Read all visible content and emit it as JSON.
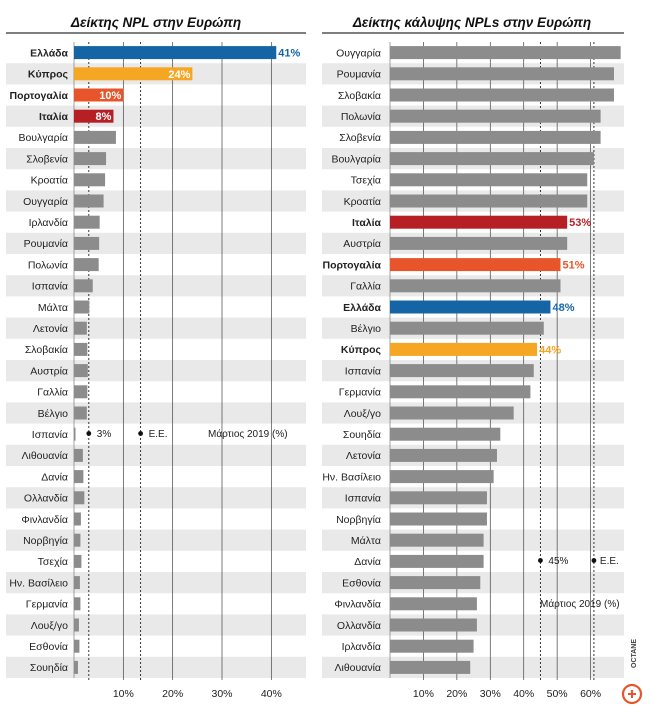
{
  "colors": {
    "gray": "#8c8c8c",
    "stripe": "#e9e9e9",
    "blue": "#1565a6",
    "orange": "#f5a623",
    "red_orange": "#e8552a",
    "red": "#b62025",
    "title_line": "#333333",
    "logo": "#e8552a"
  },
  "logo_text": "OCTANE",
  "chart_data": [
    {
      "type": "bar",
      "orientation": "horizontal",
      "title": "Δείκτης NPL στην Ευρώπη",
      "xlim": [
        0,
        45
      ],
      "xticks": [
        10,
        20,
        30,
        40
      ],
      "xtick_labels": [
        "10%",
        "20%",
        "30%",
        "40%"
      ],
      "grid": true,
      "categories": [
        "Ελλάδα",
        "Κύπρος",
        "Πορτογαλία",
        "Ιταλία",
        "Βουλγαρία",
        "Σλοβενία",
        "Κροατία",
        "Ουγγαρία",
        "Ιρλανδία",
        "Ρουμανία",
        "Πολωνία",
        "Ισπανία",
        "Μάλτα",
        "Λετονία",
        "Σλοβακία",
        "Αυστρία",
        "Γαλλία",
        "Βέλγιο",
        "Ισπανία",
        "Λιθουανία",
        "Δανία",
        "Ολλανδία",
        "Φινλανδία",
        "Νορβηγία",
        "Τσεχία",
        "Ην. Βασίλειο",
        "Γερμανία",
        "Λουξ/γο",
        "Εσθονία",
        "Σουηδία"
      ],
      "values": [
        41,
        24,
        10,
        8,
        8.5,
        6.5,
        6.3,
        6,
        5.2,
        5.1,
        5,
        3.8,
        3.1,
        2.6,
        2.7,
        2.8,
        2.7,
        2.6,
        0.3,
        1.8,
        1.9,
        2.1,
        1.4,
        1.3,
        1.5,
        1.2,
        1.3,
        1.0,
        1.1,
        0.8
      ],
      "highlights": {
        "Ελλάδα": {
          "color": "blue",
          "label": "41%"
        },
        "Κύπρος": {
          "color": "orange",
          "label": "24%"
        },
        "Πορτογαλία": {
          "color": "red_orange",
          "label": "10%"
        },
        "Ιταλία": {
          "color": "red",
          "label": "8%"
        }
      },
      "bold_categories": [
        "Ελλάδα",
        "Κύπρος",
        "Πορτογαλία",
        "Ιταλία"
      ],
      "reference_lines": [
        {
          "value": 3,
          "label": "3%"
        },
        {
          "value": 13.5,
          "label": "Ε.Ε."
        }
      ],
      "annotation": "Μάρτιος 2019 (%)"
    },
    {
      "type": "bar",
      "orientation": "horizontal",
      "title": "Δείκτης κάλυψης NPLs στην Ευρώπη",
      "xlim": [
        0,
        70
      ],
      "xticks": [
        10,
        20,
        30,
        40,
        50,
        60
      ],
      "xtick_labels": [
        "10%",
        "20%",
        "30%",
        "40%",
        "50%",
        "60%"
      ],
      "grid": true,
      "categories": [
        "Ουγγαρία",
        "Ρουμανία",
        "Σλοβακία",
        "Πολωνία",
        "Σλοβενία",
        "Βουλγαρία",
        "Τσεχία",
        "Κροατία",
        "Ιταλία",
        "Αυστρία",
        "Πορτογαλία",
        "Γαλλία",
        "Ελλάδα",
        "Βέλγιο",
        "Κύπρος",
        "Ισπανία",
        "Γερμανία",
        "Λουξ/γο",
        "Σουηδία",
        "Λετονία",
        "Ην. Βασίλειο",
        "Ισπανία",
        "Νορβηγία",
        "Μάλτα",
        "Δανία",
        "Εσθονία",
        "Φινλανδία",
        "Ολλανδία",
        "Ιρλανδία",
        "Λιθουανία"
      ],
      "values": [
        69,
        67,
        67,
        63,
        63,
        61,
        59,
        59,
        53,
        53,
        51,
        51,
        48,
        46,
        44,
        43,
        42,
        37,
        33,
        32,
        31,
        29,
        29,
        28,
        28,
        27,
        26,
        26,
        25,
        24
      ],
      "highlights": {
        "Ιταλία": {
          "color": "red",
          "label": "53%"
        },
        "Πορτογαλία": {
          "color": "red_orange",
          "label": "51%"
        },
        "Ελλάδα": {
          "color": "blue",
          "label": "48%"
        },
        "Κύπρος": {
          "color": "orange",
          "label": "44%"
        }
      },
      "bold_categories": [
        "Ιταλία",
        "Πορτογαλία",
        "Ελλάδα",
        "Κύπρος"
      ],
      "reference_lines": [
        {
          "value": 45,
          "label": "45%"
        },
        {
          "value": 61,
          "label": "Ε.Ε."
        }
      ],
      "annotation": "Μάρτιος 2019 (%)"
    }
  ]
}
